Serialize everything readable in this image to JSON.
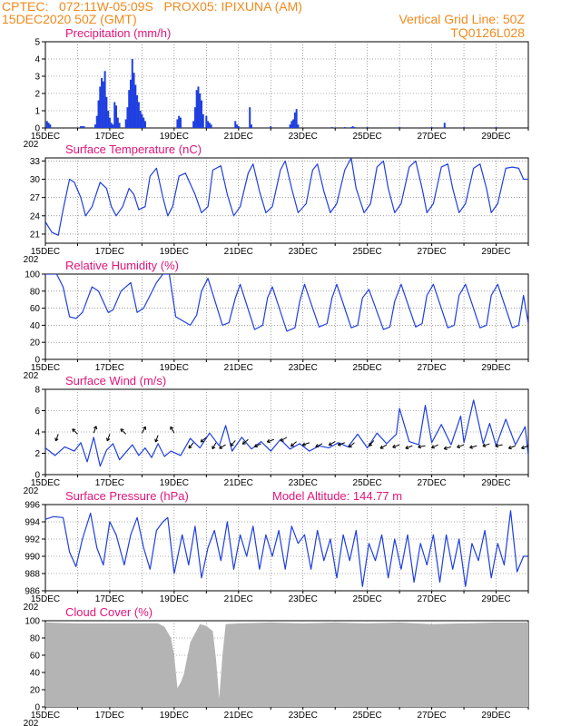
{
  "header": {
    "line1_left": "CPTEC:   072:11W-05:09S   PROX05: IPIXUNA (AM)",
    "line2_left": "15DEC2020 50Z (GMT)",
    "line2_right": "Vertical Grid Line: 50Z",
    "line3_right": "TQ0126L028"
  },
  "colors": {
    "header": "#f08a1c",
    "panel_title": "#e0147a",
    "series": "#1f3fe0",
    "cloud": "#b4b4b4",
    "grid": "#666666"
  },
  "x_axis": {
    "labels": [
      "15DEC",
      "17DEC",
      "19DEC",
      "21DEC",
      "23DEC",
      "25DEC",
      "27DEC",
      "29DEC"
    ],
    "year_fragment": "202",
    "days_range": [
      0,
      15
    ]
  },
  "chart_data": [
    {
      "id": "precip",
      "type": "bar",
      "title": "Precipitation (mm/h)",
      "ylim": [
        0,
        5
      ],
      "yticks": [
        "0",
        "1",
        "2",
        "3",
        "4",
        "5"
      ],
      "grid": true,
      "x_days": [
        0.05,
        0.1,
        0.15,
        1.1,
        1.15,
        1.2,
        1.55,
        1.6,
        1.65,
        1.7,
        1.75,
        1.8,
        1.85,
        1.9,
        1.95,
        2.0,
        2.05,
        2.1,
        2.15,
        2.2,
        2.25,
        2.3,
        2.5,
        2.55,
        2.6,
        2.65,
        2.7,
        2.75,
        2.8,
        2.85,
        2.9,
        2.95,
        3.0,
        3.05,
        3.1,
        4.1,
        4.15,
        4.2,
        4.6,
        4.65,
        4.7,
        4.75,
        4.8,
        4.85,
        4.9,
        5.0,
        5.05,
        5.1,
        5.15,
        5.9,
        5.95,
        6.0,
        6.35,
        6.4,
        7.0,
        7.6,
        7.65,
        7.7,
        7.75,
        7.8,
        7.85,
        8.9,
        9.3,
        9.5,
        9.55,
        9.6,
        10.0,
        11.0,
        12.0,
        12.4,
        13.0,
        14.0
      ],
      "values": [
        0.4,
        0.3,
        0.2,
        0.1,
        0.1,
        0.1,
        0.2,
        0.7,
        1.6,
        2.4,
        2.9,
        2.7,
        3.3,
        1.8,
        1.0,
        0.6,
        0.3,
        0.2,
        1.5,
        1.3,
        0.6,
        0.3,
        0.5,
        1.2,
        2.2,
        2.8,
        4.0,
        3.2,
        2.5,
        1.9,
        1.5,
        1.0,
        0.8,
        0.6,
        0.4,
        0.5,
        0.7,
        0.6,
        0.4,
        1.2,
        2.2,
        2.4,
        2.0,
        1.6,
        0.8,
        0.7,
        0.4,
        0.3,
        0.2,
        0.4,
        0.2,
        0.1,
        1.2,
        0.2,
        0.1,
        0.2,
        0.4,
        0.5,
        0.9,
        1.1,
        0.2,
        0.05,
        0.05,
        0.05,
        0.1,
        0.05,
        0.05,
        0.05,
        0.05,
        0.3,
        0.05,
        0.05
      ]
    },
    {
      "id": "temp",
      "type": "line",
      "title": "Surface Temperature (nC)",
      "ylim": [
        19.5,
        33.5
      ],
      "yticks": [
        "21",
        "24",
        "27",
        "30",
        "33"
      ],
      "tickvals": [
        21,
        24,
        27,
        30,
        33
      ],
      "grid": true,
      "x_days": [
        0,
        0.2,
        0.4,
        0.55,
        0.75,
        0.9,
        1.1,
        1.25,
        1.45,
        1.7,
        1.9,
        2.05,
        2.2,
        2.4,
        2.6,
        2.75,
        2.9,
        3.1,
        3.25,
        3.45,
        3.65,
        3.8,
        3.95,
        4.15,
        4.35,
        4.65,
        4.85,
        5.05,
        5.2,
        5.45,
        5.65,
        5.85,
        6.05,
        6.3,
        6.45,
        6.65,
        6.85,
        7.05,
        7.3,
        7.45,
        7.65,
        7.85,
        8.1,
        8.3,
        8.45,
        8.65,
        8.85,
        9.05,
        9.3,
        9.5,
        9.65,
        9.9,
        10.1,
        10.3,
        10.5,
        10.65,
        10.85,
        11.05,
        11.3,
        11.5,
        11.7,
        11.85,
        12.05,
        12.3,
        12.5,
        12.65,
        12.85,
        13.05,
        13.3,
        13.5,
        13.7,
        13.85,
        14.05,
        14.3,
        14.5,
        14.7,
        14.85,
        15
      ],
      "values": [
        23,
        21.3,
        20.8,
        25,
        30,
        29.5,
        27,
        24,
        25.5,
        29.5,
        28.5,
        25.5,
        24,
        25.5,
        28.5,
        27.5,
        25,
        25.5,
        30.5,
        31.8,
        27,
        24,
        25.5,
        30.5,
        31,
        27.5,
        24.5,
        25.5,
        31.5,
        32.2,
        27.5,
        24,
        25.5,
        31,
        32.5,
        28,
        24.5,
        25.5,
        31.5,
        33,
        28.5,
        24.5,
        26,
        31.5,
        32.5,
        28,
        24.5,
        26,
        31.5,
        33.5,
        28.5,
        24.5,
        26,
        32,
        33,
        28.5,
        24.5,
        26,
        32,
        33,
        28.5,
        24.5,
        26,
        32,
        32.5,
        28.5,
        24.5,
        26,
        31.8,
        32.5,
        28.5,
        24.5,
        26,
        31.8,
        32,
        31.8,
        30,
        30
      ]
    },
    {
      "id": "humidity",
      "type": "line",
      "title": "Relative Humidity (%)",
      "ylim": [
        0,
        100
      ],
      "yticks": [
        "0",
        "20",
        "40",
        "60",
        "80",
        "100"
      ],
      "tickvals": [
        0,
        20,
        40,
        60,
        80,
        100
      ],
      "grid": true,
      "x_days": [
        0,
        0.35,
        0.55,
        0.75,
        0.95,
        1.15,
        1.45,
        1.65,
        1.95,
        2.1,
        2.35,
        2.65,
        2.85,
        3.05,
        3.45,
        3.65,
        3.85,
        4.05,
        4.5,
        4.7,
        4.85,
        5.05,
        5.5,
        5.7,
        5.9,
        6.05,
        6.5,
        6.75,
        6.9,
        7.05,
        7.5,
        7.75,
        7.9,
        8.05,
        8.5,
        8.75,
        8.9,
        9.05,
        9.5,
        9.7,
        9.85,
        10.05,
        10.5,
        10.7,
        10.85,
        11.05,
        11.5,
        11.7,
        11.85,
        12.05,
        12.5,
        12.7,
        12.85,
        13.05,
        13.5,
        13.7,
        13.85,
        14.05,
        14.5,
        14.7,
        14.85,
        15
      ],
      "values": [
        100,
        100,
        85,
        50,
        48,
        55,
        85,
        80,
        55,
        58,
        80,
        90,
        55,
        60,
        90,
        100,
        100,
        50,
        40,
        52,
        80,
        95,
        40,
        43,
        72,
        88,
        35,
        40,
        72,
        85,
        33,
        37,
        68,
        88,
        38,
        42,
        72,
        88,
        37,
        40,
        72,
        82,
        35,
        38,
        68,
        88,
        38,
        42,
        75,
        88,
        37,
        40,
        75,
        88,
        37,
        40,
        75,
        88,
        37,
        40,
        75,
        42
      ]
    },
    {
      "id": "wind",
      "type": "line",
      "title": "Surface Wind (m/s)",
      "ylim": [
        0,
        8
      ],
      "yticks": [
        "0",
        "2",
        "4",
        "6",
        "8"
      ],
      "tickvals": [
        0,
        2,
        4,
        6,
        8
      ],
      "grid": true,
      "x_days": [
        0,
        0.3,
        0.6,
        0.9,
        1.1,
        1.3,
        1.5,
        1.7,
        1.9,
        2.1,
        2.3,
        2.5,
        2.7,
        2.9,
        3.1,
        3.3,
        3.5,
        3.7,
        3.9,
        4.2,
        4.5,
        4.8,
        5.1,
        5.4,
        5.6,
        5.8,
        6.1,
        6.4,
        6.7,
        7.0,
        7.3,
        7.6,
        7.9,
        8.2,
        8.5,
        8.8,
        9.1,
        9.4,
        9.7,
        10.0,
        10.3,
        10.6,
        10.9,
        11.0,
        11.3,
        11.6,
        11.8,
        12.0,
        12.3,
        12.6,
        12.9,
        13.0,
        13.3,
        13.6,
        13.8,
        14.0,
        14.3,
        14.6,
        14.9,
        15
      ],
      "values": [
        2.5,
        1.8,
        2.6,
        2.2,
        3.0,
        1.2,
        3.5,
        0.8,
        2.3,
        2.9,
        1.4,
        2.1,
        2.8,
        1.8,
        2.5,
        1.6,
        2.9,
        1.7,
        2.2,
        1.8,
        3.4,
        2.5,
        3.9,
        2.7,
        4.6,
        2.2,
        3.5,
        2.4,
        3.1,
        2.2,
        3.3,
        2.4,
        2.9,
        2.2,
        2.7,
        2.5,
        3.0,
        2.6,
        3.8,
        2.5,
        3.9,
        2.9,
        3.8,
        6.2,
        3.1,
        2.8,
        6.5,
        3.0,
        4.7,
        2.8,
        5.5,
        3.0,
        7.0,
        2.9,
        4.8,
        2.7,
        5.2,
        2.8,
        4.5,
        1.8
      ],
      "arrows_days": [
        0.4,
        1.0,
        1.5,
        2.0,
        2.5,
        3.0,
        3.5,
        4.0,
        4.6,
        5.0,
        5.3,
        5.6,
        5.9,
        6.3,
        6.7,
        7.1,
        7.5,
        7.8,
        8.2,
        8.6,
        9.0,
        9.3,
        9.6,
        10.2,
        10.6,
        11.0,
        11.4,
        11.8,
        12.2,
        12.6,
        13.0,
        13.4,
        13.8,
        14.2,
        14.6,
        15.0
      ],
      "arrows_speed": [
        3.8,
        3.8,
        3.9,
        3.8,
        3.8,
        3.9,
        3.7,
        3.9,
        3.0,
        3.5,
        3.0,
        2.8,
        3.2,
        3.3,
        2.9,
        3.3,
        3.5,
        3.1,
        3.0,
        2.9,
        3.1,
        3.0,
        3.0,
        3.2,
        2.8,
        2.8,
        2.7,
        2.7,
        2.8,
        2.6,
        2.8,
        2.7,
        2.9,
        2.8,
        2.7,
        2.7
      ],
      "arrows_dir_deg": [
        200,
        315,
        20,
        200,
        315,
        30,
        200,
        330,
        220,
        230,
        210,
        240,
        220,
        230,
        245,
        250,
        240,
        230,
        250,
        245,
        240,
        250,
        230,
        220,
        240,
        250,
        250,
        260,
        245,
        255,
        250,
        255,
        250,
        260,
        250,
        250
      ]
    },
    {
      "id": "pressure",
      "type": "line",
      "title": "Surface Pressure (hPa)",
      "annotation": "Model Altitude: 144.77 m",
      "ylim": [
        986,
        996
      ],
      "yticks": [
        "986",
        "988",
        "990",
        "992",
        "994",
        "996"
      ],
      "tickvals": [
        986,
        988,
        990,
        992,
        994,
        996
      ],
      "grid": true,
      "x_days": [
        0,
        0.25,
        0.55,
        0.75,
        0.95,
        1.15,
        1.4,
        1.6,
        1.8,
        2.0,
        2.2,
        2.45,
        2.65,
        2.85,
        3.05,
        3.25,
        3.45,
        3.65,
        3.8,
        4.0,
        4.25,
        4.45,
        4.65,
        4.85,
        5.05,
        5.25,
        5.45,
        5.65,
        5.85,
        6.05,
        6.25,
        6.45,
        6.65,
        6.85,
        7.05,
        7.25,
        7.45,
        7.65,
        7.85,
        8.05,
        8.25,
        8.45,
        8.65,
        8.85,
        9.05,
        9.25,
        9.45,
        9.65,
        9.85,
        10.05,
        10.25,
        10.45,
        10.65,
        10.85,
        11.05,
        11.25,
        11.45,
        11.65,
        11.85,
        12.05,
        12.25,
        12.45,
        12.65,
        12.85,
        13.05,
        13.25,
        13.45,
        13.65,
        13.85,
        14.05,
        14.25,
        14.45,
        14.65,
        14.85,
        15
      ],
      "values": [
        994.3,
        994.6,
        994.5,
        990.5,
        988.8,
        992,
        995,
        991,
        989,
        994,
        992.5,
        989,
        992.5,
        994.5,
        991,
        988.5,
        993,
        994,
        994.5,
        988,
        992.5,
        989,
        993.5,
        987.5,
        991,
        993,
        989.5,
        994,
        988.5,
        992.5,
        990,
        993.5,
        988.5,
        992.5,
        990,
        993,
        988.5,
        993.5,
        991.5,
        992.5,
        988.5,
        993,
        989.5,
        992,
        987.5,
        992.5,
        989.5,
        993,
        986.5,
        991.5,
        989.5,
        992.5,
        987.5,
        992,
        988.5,
        992.5,
        987,
        991.5,
        989,
        992.5,
        987,
        992.5,
        988.5,
        992,
        986.5,
        991.5,
        989.5,
        993,
        987.5,
        991.5,
        989,
        995.3,
        988.2,
        990,
        990
      ]
    },
    {
      "id": "cloud",
      "type": "area",
      "title": "Cloud Cover (%)",
      "ylim": [
        0,
        100
      ],
      "yticks": [
        "0",
        "20",
        "40",
        "60",
        "80",
        "100"
      ],
      "tickvals": [
        0,
        20,
        40,
        60,
        80,
        100
      ],
      "grid": true,
      "x_days": [
        0,
        1,
        2,
        3,
        3.5,
        3.7,
        3.9,
        4.0,
        4.1,
        4.2,
        4.3,
        4.5,
        4.8,
        5.0,
        5.2,
        5.3,
        5.4,
        5.5,
        5.6,
        6.0,
        7.0,
        8.0,
        9.0,
        10.0,
        11.0,
        12.0,
        13.0,
        14.0,
        15
      ],
      "values": [
        98,
        97,
        97,
        97,
        97,
        93,
        80,
        60,
        22,
        28,
        38,
        75,
        96,
        94,
        88,
        55,
        10,
        60,
        96,
        97,
        98,
        97,
        98,
        97,
        98,
        96,
        97,
        98,
        98
      ]
    }
  ]
}
